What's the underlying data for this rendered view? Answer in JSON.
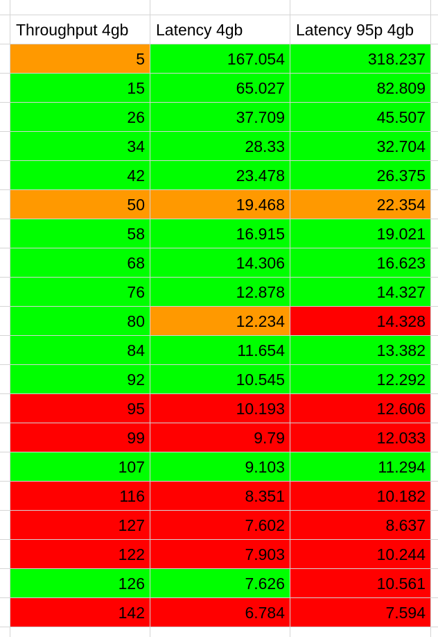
{
  "colors": {
    "green": "#00ff00",
    "orange": "#ff9900",
    "red": "#ff0000",
    "gridline": "#d4d4d4"
  },
  "headers": [
    "Throughput 4gb",
    "Latency 4gb",
    "Latency 95p 4gb"
  ],
  "rows": [
    {
      "values": [
        "5",
        "167.054",
        "318.237"
      ],
      "fills": [
        "orange",
        "green",
        "green"
      ]
    },
    {
      "values": [
        "15",
        "65.027",
        "82.809"
      ],
      "fills": [
        "green",
        "green",
        "green"
      ]
    },
    {
      "values": [
        "26",
        "37.709",
        "45.507"
      ],
      "fills": [
        "green",
        "green",
        "green"
      ]
    },
    {
      "values": [
        "34",
        "28.33",
        "32.704"
      ],
      "fills": [
        "green",
        "green",
        "green"
      ]
    },
    {
      "values": [
        "42",
        "23.478",
        "26.375"
      ],
      "fills": [
        "green",
        "green",
        "green"
      ]
    },
    {
      "values": [
        "50",
        "19.468",
        "22.354"
      ],
      "fills": [
        "orange",
        "orange",
        "orange"
      ]
    },
    {
      "values": [
        "58",
        "16.915",
        "19.021"
      ],
      "fills": [
        "green",
        "green",
        "green"
      ]
    },
    {
      "values": [
        "68",
        "14.306",
        "16.623"
      ],
      "fills": [
        "green",
        "green",
        "green"
      ]
    },
    {
      "values": [
        "76",
        "12.878",
        "14.327"
      ],
      "fills": [
        "green",
        "green",
        "green"
      ]
    },
    {
      "values": [
        "80",
        "12.234",
        "14.328"
      ],
      "fills": [
        "green",
        "orange",
        "red"
      ]
    },
    {
      "values": [
        "84",
        "11.654",
        "13.382"
      ],
      "fills": [
        "green",
        "green",
        "green"
      ]
    },
    {
      "values": [
        "92",
        "10.545",
        "12.292"
      ],
      "fills": [
        "green",
        "green",
        "green"
      ]
    },
    {
      "values": [
        "95",
        "10.193",
        "12.606"
      ],
      "fills": [
        "red",
        "red",
        "red"
      ]
    },
    {
      "values": [
        "99",
        "9.79",
        "12.033"
      ],
      "fills": [
        "red",
        "red",
        "red"
      ]
    },
    {
      "values": [
        "107",
        "9.103",
        "11.294"
      ],
      "fills": [
        "green",
        "green",
        "green"
      ]
    },
    {
      "values": [
        "116",
        "8.351",
        "10.182"
      ],
      "fills": [
        "red",
        "red",
        "red"
      ]
    },
    {
      "values": [
        "127",
        "7.602",
        "8.637"
      ],
      "fills": [
        "red",
        "red",
        "red"
      ]
    },
    {
      "values": [
        "122",
        "7.903",
        "10.244"
      ],
      "fills": [
        "red",
        "red",
        "red"
      ]
    },
    {
      "values": [
        "126",
        "7.626",
        "10.561"
      ],
      "fills": [
        "green",
        "green",
        "red"
      ]
    },
    {
      "values": [
        "142",
        "6.784",
        "7.594"
      ],
      "fills": [
        "red",
        "red",
        "red"
      ]
    }
  ]
}
